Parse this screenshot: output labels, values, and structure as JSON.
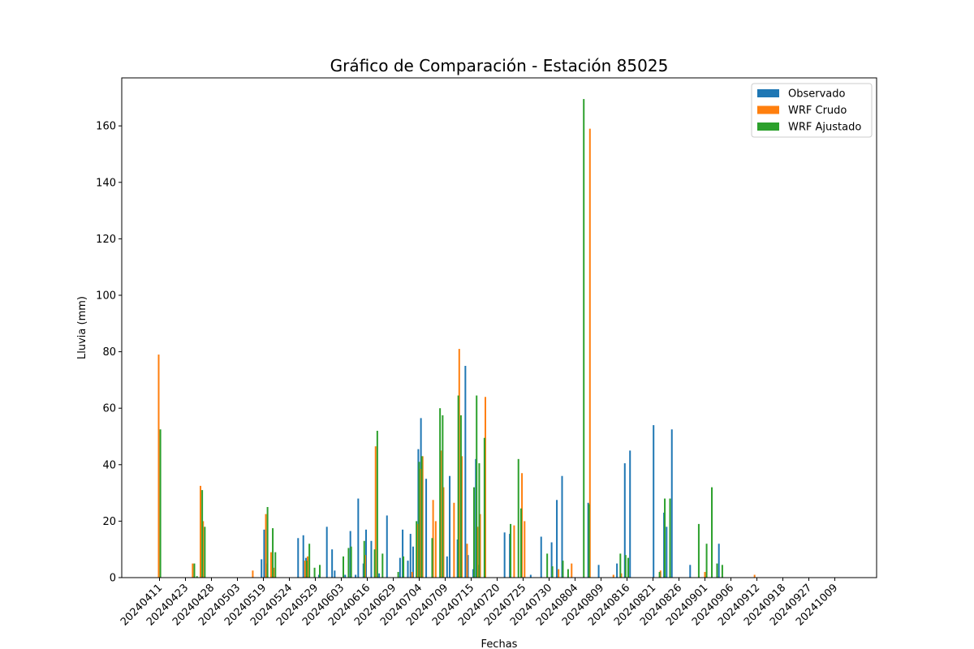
{
  "chart_data": {
    "type": "bar",
    "title": "Gráfico de Comparación - Estación 85025",
    "xlabel": "Fechas",
    "ylabel": "Lluvia (mm)",
    "ylim": [
      0,
      177
    ],
    "yticks": [
      0,
      20,
      40,
      60,
      80,
      100,
      120,
      140,
      160
    ],
    "xtick_labels": [
      "20240411",
      "20240423",
      "20240428",
      "20240503",
      "20240519",
      "20240524",
      "20240529",
      "20240603",
      "20240616",
      "20240629",
      "20240704",
      "20240709",
      "20240715",
      "20240720",
      "20240725",
      "20240730",
      "20240804",
      "20240809",
      "20240816",
      "20240821",
      "20240826",
      "20240901",
      "20240906",
      "20240912",
      "20240918",
      "20240927",
      "20241009"
    ],
    "legend_position": "upper-right",
    "colors": {
      "Observado": "#1f77b4",
      "WRF Crudo": "#ff7f0e",
      "WRF Ajustado": "#2ca02c"
    },
    "series": [
      {
        "name": "Observado",
        "values": [
          0,
          0,
          0,
          0,
          0,
          0,
          0,
          0,
          0,
          0,
          0,
          0,
          0,
          0,
          0,
          0,
          0,
          0,
          0,
          0,
          0,
          0,
          0,
          0,
          0,
          0,
          0,
          0,
          0,
          0,
          0,
          0,
          0,
          0,
          0,
          0,
          0,
          0,
          0,
          0,
          6.5,
          17,
          5,
          0,
          0,
          0,
          0,
          0,
          0,
          0,
          0,
          0,
          0,
          0,
          14,
          0,
          15,
          7,
          0,
          0,
          0,
          0,
          1,
          0,
          0,
          18,
          0,
          10,
          2.5,
          0,
          0,
          0,
          1,
          0,
          16.5,
          0,
          1,
          28,
          0,
          5,
          17,
          0,
          13,
          0,
          0,
          1.5,
          0,
          0,
          22,
          0,
          0,
          0,
          0,
          7,
          17,
          0,
          6,
          15.5,
          11,
          0,
          45.5,
          56.5,
          0,
          35,
          0,
          0,
          0,
          0,
          0,
          0,
          0,
          7.5,
          36,
          0,
          0,
          13.5,
          0,
          0,
          75,
          8,
          0,
          3,
          42,
          4.5,
          0,
          0,
          0,
          0,
          0,
          0,
          0,
          0,
          0,
          16,
          0,
          15.5,
          0,
          0,
          0,
          0,
          0,
          0,
          0,
          1,
          0,
          0,
          0,
          14.5,
          0,
          0,
          0,
          12.5,
          0,
          27.5,
          0,
          36,
          0,
          0,
          0,
          0,
          0,
          0,
          0,
          0,
          0,
          26.5,
          0,
          0,
          0,
          4.5,
          0,
          0,
          0,
          0,
          0,
          0,
          5,
          0,
          0,
          40.5,
          0,
          45,
          0,
          0,
          0,
          0,
          0,
          0,
          0,
          0,
          54,
          0,
          0,
          0,
          23,
          18,
          0,
          52.5,
          0,
          0,
          0,
          0,
          0,
          0,
          4.5,
          0,
          0,
          0,
          0,
          0,
          0,
          0,
          0,
          0,
          0,
          12,
          0
        ]
      },
      {
        "name": "WRF Crudo",
        "values": [
          79,
          0,
          0,
          0,
          0,
          0,
          0,
          0,
          0,
          0,
          0,
          0,
          0,
          5,
          0,
          0,
          32.5,
          20,
          0,
          0,
          0,
          0,
          0,
          0,
          0,
          0,
          0,
          0,
          0,
          0,
          0,
          0,
          0,
          0,
          0,
          0,
          2.5,
          0,
          0,
          0,
          0,
          22.5,
          0,
          9,
          3.5,
          0,
          0,
          0,
          0,
          0,
          0,
          0,
          0,
          0,
          0,
          0,
          6,
          7.5,
          0,
          0,
          0,
          0,
          0,
          0,
          0,
          0,
          0,
          0,
          0,
          0,
          0,
          0,
          0,
          0,
          0,
          0,
          0,
          0,
          0,
          8,
          0,
          0,
          0,
          46.5,
          0,
          0,
          0,
          0,
          0,
          0,
          0,
          0,
          0,
          0,
          0,
          0,
          0,
          2,
          0,
          19,
          38.5,
          43,
          0,
          0,
          0,
          27.5,
          20,
          0,
          45,
          32,
          0,
          0,
          0,
          26.5,
          0,
          81,
          43,
          0,
          12,
          0,
          0,
          0,
          18,
          22.5,
          0,
          64,
          0,
          0,
          0,
          0,
          0,
          0,
          0,
          0,
          0,
          0,
          18.5,
          0,
          0,
          37,
          20,
          0,
          0,
          0,
          0,
          0,
          0,
          0,
          0,
          0,
          0,
          0,
          0,
          3,
          0,
          0,
          0,
          0,
          5,
          0,
          0,
          0,
          0,
          0,
          0,
          159,
          0,
          0,
          0,
          0,
          0,
          0,
          0,
          0,
          1,
          0,
          0,
          1.5,
          0,
          0,
          0,
          0,
          0,
          0,
          0,
          0,
          0,
          0,
          0,
          0,
          0,
          0,
          2.5,
          0,
          0,
          0,
          0,
          0,
          0,
          0,
          0,
          0,
          0,
          0,
          0,
          0,
          0,
          0,
          0,
          2,
          0,
          0,
          0,
          0,
          0,
          0,
          0,
          0,
          0,
          0,
          0,
          0,
          0,
          0,
          0,
          0,
          0,
          0,
          1,
          0
        ]
      },
      {
        "name": "WRF Ajustado",
        "values": [
          52.5,
          0,
          0,
          0,
          0,
          0,
          0,
          0,
          0,
          0,
          0,
          0,
          0,
          5,
          0.5,
          0,
          31,
          18,
          0,
          0,
          0,
          0,
          0,
          0,
          0,
          0,
          0,
          0,
          0,
          0,
          0,
          0,
          0,
          0,
          0,
          0,
          0,
          0,
          0,
          0,
          0,
          25,
          0,
          17.5,
          9,
          0,
          0,
          0,
          0,
          0,
          0,
          0,
          0,
          0,
          0,
          0,
          6,
          12,
          0,
          3.5,
          0,
          4.5,
          0,
          0,
          0,
          0,
          0,
          0,
          0,
          0,
          7.5,
          0,
          10.5,
          11,
          0,
          0,
          0,
          0,
          13,
          0,
          0,
          0,
          10,
          52,
          0,
          8.5,
          0,
          0,
          0,
          0,
          0,
          2,
          0,
          7.5,
          0,
          0,
          0,
          0,
          20,
          41,
          43,
          0,
          0,
          0,
          14,
          0,
          0,
          60,
          57.5,
          0,
          0,
          0,
          0,
          0,
          64.5,
          57.5,
          0,
          0,
          0,
          0,
          32,
          64.5,
          40.5,
          0,
          49.5,
          0,
          0,
          0,
          0,
          0,
          0,
          0,
          0,
          0,
          19,
          0,
          0,
          42,
          24.5,
          0,
          0,
          0,
          0,
          0,
          0,
          0,
          0,
          0,
          8.5,
          0,
          4,
          0,
          0,
          0,
          6,
          0,
          3,
          0,
          0,
          0,
          0,
          0,
          169.5,
          0,
          26,
          0,
          0,
          0,
          0,
          0,
          0,
          0,
          0,
          0,
          0,
          0,
          8.5,
          0,
          8,
          7,
          0,
          0,
          0,
          0,
          0,
          0,
          0,
          0,
          0,
          0,
          0,
          2,
          0,
          28,
          0,
          28,
          0,
          0,
          0,
          0,
          0,
          0,
          0,
          0,
          0,
          0,
          19,
          0,
          0,
          12,
          0,
          32,
          0,
          5,
          0,
          4.5,
          0,
          0,
          0,
          0,
          0,
          0,
          0,
          0,
          0,
          0,
          0,
          0,
          0,
          0
        ]
      }
    ]
  }
}
